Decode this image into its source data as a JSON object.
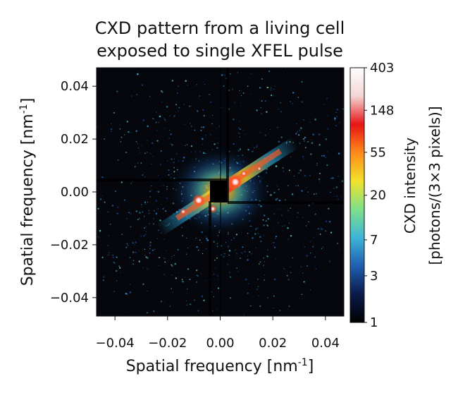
{
  "chart_data": {
    "type": "heatmap",
    "title_lines": [
      "CXD pattern from a living cell",
      "exposed to single XFEL pulse"
    ],
    "x_axis": {
      "label_prefix": "Spatial frequency [nm",
      "label_sup": "-1",
      "label_suffix": "]",
      "ticks": [
        "−0.04",
        "−0.02",
        "0.00",
        "0.02",
        "0.04"
      ],
      "tick_values": [
        -0.04,
        -0.02,
        0.0,
        0.02,
        0.04
      ],
      "range": [
        -0.047,
        0.047
      ]
    },
    "y_axis": {
      "label_prefix": "Spatial frequency [nm",
      "label_sup": "-1",
      "label_suffix": "]",
      "ticks": [
        "0.04",
        "0.02",
        "0.00",
        "−0.02",
        "−0.04"
      ],
      "tick_values": [
        0.04,
        0.02,
        0.0,
        -0.02,
        -0.04
      ],
      "range": [
        -0.047,
        0.047
      ]
    },
    "colorbar": {
      "scale": "log",
      "ticks": [
        "403",
        "148",
        "55",
        "20",
        "7",
        "3",
        "1"
      ],
      "tick_values": [
        403,
        148,
        55,
        20,
        7,
        3,
        1
      ],
      "range": [
        1,
        403
      ],
      "title_line1": "CXD intensity",
      "title_line2": "[photons/(3×3 pixels)]",
      "colors": [
        "#000000",
        "#0b1a4a",
        "#1f5fb0",
        "#3fb4d8",
        "#7ee08a",
        "#f2e22a",
        "#ff8a1a",
        "#e81414",
        "#f3d6d6",
        "#ffffff"
      ]
    },
    "pattern": {
      "background": "#05070d",
      "features": [
        "central speckle halo",
        "diagonal streak",
        "beamstop shadow",
        "detector gap lines"
      ]
    }
  }
}
